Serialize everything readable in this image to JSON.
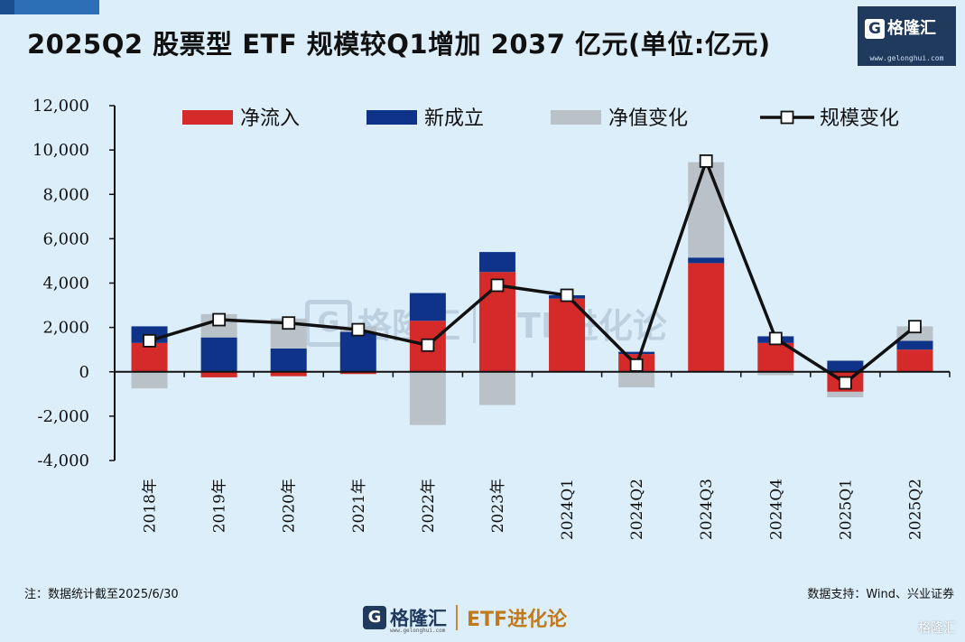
{
  "title": "2025Q2 股票型 ETF 规模较Q1增加 2037 亿元(单位:亿元)",
  "brand": {
    "logo_name": "格隆汇",
    "logo_url": "www.gelonghui.com",
    "footer_name": "格隆汇",
    "footer_url": "www.gelonghui.com",
    "footer_tag": "ETF进化论",
    "watermark_name": "格隆汇",
    "watermark_tag": "ETF进化论",
    "corner_mark": "格隆汇"
  },
  "notes": {
    "left": "注：数据统计截至2025/6/30",
    "right": "数据支持：Wind、兴业证券"
  },
  "colors": {
    "net_inflow": "#d42a2a",
    "new_listing": "#10338a",
    "nav_change": "#b9c2c8",
    "scale_change": "#111111",
    "background": "#dceefa"
  },
  "chart_data": {
    "type": "bar",
    "stacked": true,
    "categories": [
      "2018年",
      "2019年",
      "2020年",
      "2021年",
      "2022年",
      "2023年",
      "2024Q1",
      "2024Q2",
      "2024Q3",
      "2024Q4",
      "2025Q1",
      "2025Q2"
    ],
    "series": [
      {
        "name": "净流入",
        "type": "bar",
        "color": "#d42a2a",
        "values": [
          1300,
          -250,
          -200,
          -100,
          2300,
          4500,
          3300,
          800,
          4900,
          1300,
          -900,
          1000
        ]
      },
      {
        "name": "新成立",
        "type": "bar",
        "color": "#10338a",
        "values": [
          750,
          1550,
          1050,
          1800,
          1250,
          900,
          150,
          100,
          250,
          300,
          500,
          400
        ]
      },
      {
        "name": "净值变化",
        "type": "bar",
        "color": "#b9c2c8",
        "values": [
          -750,
          1050,
          1350,
          250,
          -2400,
          -1500,
          0,
          -700,
          4300,
          -150,
          -250,
          650
        ]
      },
      {
        "name": "规模变化",
        "type": "line",
        "marker": "square-open",
        "color": "#111111",
        "values": [
          1400,
          2350,
          2200,
          1900,
          1200,
          3900,
          3450,
          300,
          9500,
          1500,
          -500,
          2037
        ]
      }
    ],
    "yticks": [
      "12,000",
      "10,000",
      "8,000",
      "6,000",
      "4,000",
      "2,000",
      "0",
      "-2,000",
      "-4,000"
    ],
    "ylim": [
      -4000,
      12000
    ],
    "grid": false,
    "legend_position": "top"
  }
}
